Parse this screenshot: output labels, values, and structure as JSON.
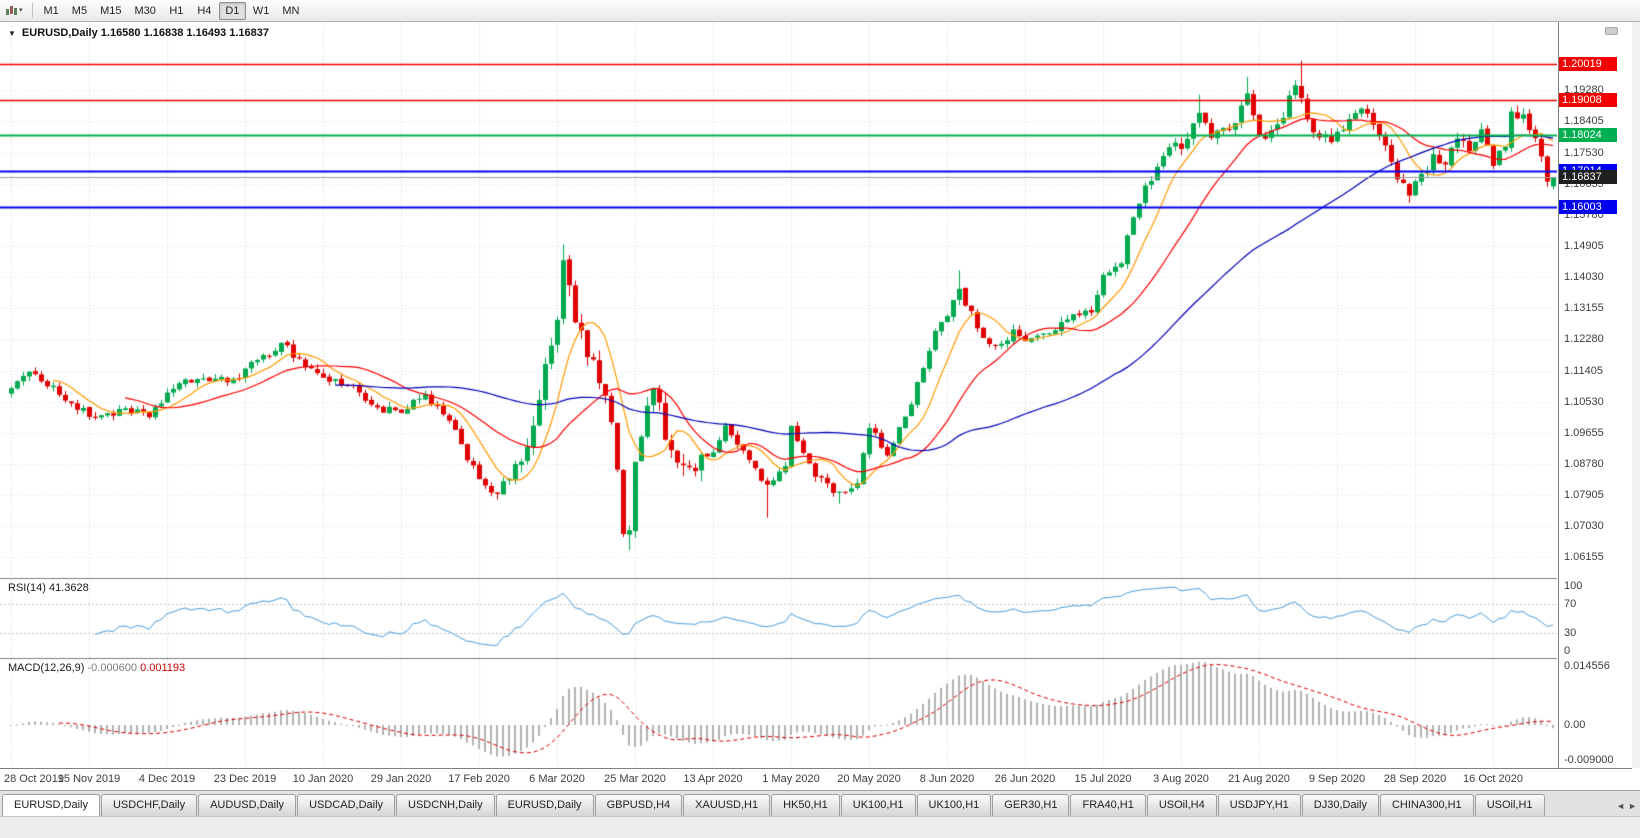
{
  "toolbar": {
    "timeframes": [
      "M1",
      "M5",
      "M15",
      "M30",
      "H1",
      "H4",
      "D1",
      "W1",
      "MN"
    ],
    "active_timeframe": "D1"
  },
  "icons": {
    "collapse_triangle": "▼",
    "caret_down": "▾",
    "tab_scroll_left": "◄",
    "tab_scroll_right": "►"
  },
  "tabbar": {
    "tabs": [
      "EURUSD,Daily",
      "USDCHF,Daily",
      "AUDUSD,Daily",
      "USDCAD,Daily",
      "USDCNH,Daily",
      "EURUSD,Daily",
      "GBPUSD,H4",
      "XAUUSD,H1",
      "HK50,H1",
      "UK100,H1",
      "UK100,H1",
      "GER30,H1",
      "FRA40,H1",
      "USOil,H4",
      "USDJPY,H1",
      "DJ30,Daily",
      "CHINA300,H1",
      "USOil,H1"
    ],
    "active_index": 0
  },
  "colors": {
    "grid": "#d6d6d6",
    "grid_h": "#ebebeb",
    "bull": "#00a94f",
    "bear": "#e00000",
    "bid": "#9a9a9a",
    "bid_label_bg": "#1f1f1f",
    "frame": "#808080",
    "axis_text": "#3d3d3d"
  },
  "chart_data": {
    "type": "candlestick",
    "symbol": "EURUSD",
    "timeframe": "Daily",
    "header_text": "EURUSD,Daily 1.16580 1.16838 1.16493 1.16837",
    "ohlc": {
      "open": 1.1658,
      "high": 1.16838,
      "low": 1.16493,
      "close": 1.16837
    },
    "price_min": 1.058,
    "price_max": 1.2075,
    "price_ticks": [
      "1.19280",
      "1.18405",
      "1.17530",
      "1.16655",
      "1.15780",
      "1.14905",
      "1.14030",
      "1.13155",
      "1.12280",
      "1.11405",
      "1.10530",
      "1.09655",
      "1.08780",
      "1.07905",
      "1.07030",
      "1.06155"
    ],
    "hlines": [
      {
        "price": 1.20019,
        "label": "1.20019",
        "color": "#f40000",
        "width": 1.4
      },
      {
        "price": 1.19008,
        "label": "1.19008",
        "color": "#f40000",
        "width": 1.4
      },
      {
        "price": 1.18024,
        "label": "1.18024",
        "color": "#00b050",
        "width": 2
      },
      {
        "price": 1.17014,
        "label": "1.17014",
        "color": "#0000f0",
        "width": 2
      },
      {
        "price": 1.16003,
        "label": "1.16003",
        "color": "#0000f0",
        "width": 2
      }
    ],
    "current_price": {
      "value": 1.16837,
      "label": "1.16837"
    },
    "dates": [
      "28 Oct 2019",
      "15 Nov 2019",
      "4 Dec 2019",
      "23 Dec 2019",
      "10 Jan 2020",
      "29 Jan 2020",
      "17 Feb 2020",
      "6 Mar 2020",
      "25 Mar 2020",
      "13 Apr 2020",
      "1 May 2020",
      "20 May 2020",
      "8 Jun 2020",
      "26 Jun 2020",
      "15 Jul 2020",
      "3 Aug 2020",
      "21 Aug 2020",
      "9 Sep 2020",
      "28 Sep 2020",
      "16 Oct 2020"
    ],
    "candles_per_label": 13,
    "n_candles": 258,
    "anchors": [
      [
        0,
        1.1095
      ],
      [
        4,
        1.1135
      ],
      [
        9,
        1.106
      ],
      [
        13,
        1.101
      ],
      [
        18,
        1.1028
      ],
      [
        23,
        1.1012
      ],
      [
        26,
        1.1078
      ],
      [
        31,
        1.112
      ],
      [
        36,
        1.1108
      ],
      [
        41,
        1.1165
      ],
      [
        45,
        1.122
      ],
      [
        48,
        1.1172
      ],
      [
        52,
        1.112
      ],
      [
        57,
        1.1095
      ],
      [
        61,
        1.1035
      ],
      [
        65,
        1.102
      ],
      [
        69,
        1.1072
      ],
      [
        73,
        1.0995
      ],
      [
        78,
        1.0838
      ],
      [
        81,
        1.0792
      ],
      [
        85,
        1.089
      ],
      [
        88,
        1.1055
      ],
      [
        91,
        1.1285
      ],
      [
        92,
        1.1445
      ],
      [
        94,
        1.1282
      ],
      [
        96,
        1.118
      ],
      [
        98,
        1.1108
      ],
      [
        100,
        1.0992
      ],
      [
        102,
        1.0692
      ],
      [
        103,
        1.0682
      ],
      [
        104,
        1.088
      ],
      [
        106,
        1.1032
      ],
      [
        107,
        1.11
      ],
      [
        109,
        1.0952
      ],
      [
        113,
        1.0862
      ],
      [
        117,
        1.0915
      ],
      [
        119,
        1.0982
      ],
      [
        124,
        1.0866
      ],
      [
        126,
        1.0816
      ],
      [
        129,
        1.0872
      ],
      [
        130,
        1.098
      ],
      [
        134,
        1.0846
      ],
      [
        138,
        1.0796
      ],
      [
        141,
        1.0826
      ],
      [
        143,
        1.0976
      ],
      [
        146,
        1.0906
      ],
      [
        149,
        1.1012
      ],
      [
        151,
        1.1106
      ],
      [
        154,
        1.1252
      ],
      [
        156,
        1.1292
      ],
      [
        158,
        1.1372
      ],
      [
        161,
        1.1256
      ],
      [
        164,
        1.1212
      ],
      [
        167,
        1.1252
      ],
      [
        169,
        1.1222
      ],
      [
        172,
        1.1242
      ],
      [
        176,
        1.1282
      ],
      [
        180,
        1.1306
      ],
      [
        182,
        1.1412
      ],
      [
        185,
        1.1446
      ],
      [
        187,
        1.1572
      ],
      [
        189,
        1.1656
      ],
      [
        192,
        1.1742
      ],
      [
        194,
        1.178
      ],
      [
        195,
        1.1762
      ],
      [
        198,
        1.187
      ],
      [
        200,
        1.1792
      ],
      [
        203,
        1.1816
      ],
      [
        206,
        1.1926
      ],
      [
        208,
        1.1796
      ],
      [
        211,
        1.1832
      ],
      [
        214,
        1.1936
      ],
      [
        215,
        1.1912
      ],
      [
        217,
        1.1812
      ],
      [
        220,
        1.1782
      ],
      [
        223,
        1.1846
      ],
      [
        226,
        1.1866
      ],
      [
        229,
        1.1772
      ],
      [
        231,
        1.1682
      ],
      [
        233,
        1.1632
      ],
      [
        234,
        1.1666
      ],
      [
        237,
        1.1742
      ],
      [
        239,
        1.1716
      ],
      [
        241,
        1.1786
      ],
      [
        243,
        1.1762
      ],
      [
        245,
        1.1816
      ],
      [
        247,
        1.1716
      ],
      [
        249,
        1.1772
      ],
      [
        250,
        1.1862
      ],
      [
        252,
        1.186
      ],
      [
        253,
        1.1812
      ],
      [
        254,
        1.1796
      ],
      [
        255,
        1.1748
      ],
      [
        256,
        1.1676
      ],
      [
        257,
        1.16837
      ]
    ],
    "wick_overrides": {
      "81": {
        "l": 1.0778
      },
      "92": {
        "h": 1.1495
      },
      "103": {
        "l": 1.0636
      },
      "126": {
        "l": 1.0727
      },
      "138": {
        "l": 1.0766
      },
      "158": {
        "h": 1.1422
      },
      "198": {
        "h": 1.1916
      },
      "206": {
        "h": 1.1966
      },
      "215": {
        "h": 1.2011
      },
      "233": {
        "l": 1.1612
      },
      "250": {
        "h": 1.188
      }
    },
    "vol_zones": [
      [
        0,
        84,
        1.0
      ],
      [
        85,
        115,
        2.3
      ],
      [
        116,
        150,
        1.05
      ],
      [
        151,
        194,
        1.05
      ],
      [
        195,
        257,
        1.35
      ]
    ],
    "last_candle": {
      "open": 1.1658,
      "high": 1.16838,
      "low": 1.16493,
      "close": 1.16837
    },
    "ma": [
      {
        "period": 8,
        "color": "#ff9900"
      },
      {
        "period": 20,
        "color": "#ff0000"
      },
      {
        "period": 55,
        "color": "#0000bb"
      }
    ],
    "rsi": {
      "name": "RSI(14)",
      "value": "41.3628",
      "period": 14,
      "levels": [
        70,
        30
      ],
      "axis_labels": [
        {
          "v": 100,
          "t": "100"
        },
        {
          "v": 70,
          "t": "70"
        },
        {
          "v": 30,
          "t": "30"
        },
        {
          "v": 0,
          "t": "0"
        }
      ],
      "color": "#4aa0e0",
      "level_color": "#c4c4c4"
    },
    "macd": {
      "name": "MACD(12,26,9)",
      "value_main": "-0.000600",
      "value_signal": "0.001193",
      "fast": 12,
      "slow": 26,
      "signal": 9,
      "range": [
        -0.009,
        0.014556
      ],
      "axis_labels": [
        {
          "v": 0.014556,
          "t": "0.014556"
        },
        {
          "v": 0,
          "t": "0.00"
        },
        {
          "v": -0.009,
          "t": "-0.009000"
        }
      ],
      "hist_color": "#b2b2b2",
      "signal_color": "#dd0000"
    }
  }
}
